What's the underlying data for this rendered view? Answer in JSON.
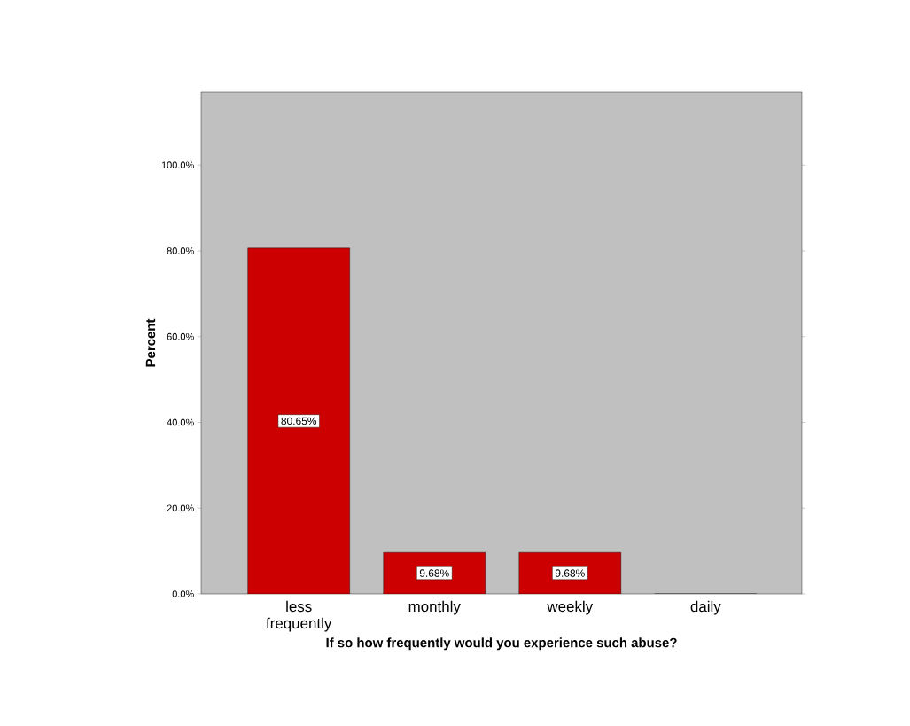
{
  "chart_data": {
    "type": "bar",
    "categories": [
      "less frequently",
      "monthly",
      "weekly",
      "daily"
    ],
    "values": [
      80.65,
      9.68,
      9.68,
      0
    ],
    "value_labels": [
      "80.65%",
      "9.68%",
      "9.68%",
      null
    ],
    "color": "#cc0000",
    "xlabel": "If so how frequently would you experience such abuse?",
    "ylabel": "Percent",
    "ylim": [
      0,
      117
    ],
    "yticks": [
      {
        "value": 0,
        "label": "0.0%"
      },
      {
        "value": 20,
        "label": "20.0%"
      },
      {
        "value": 40,
        "label": "40.0%"
      },
      {
        "value": 60,
        "label": "60.0%"
      },
      {
        "value": 80,
        "label": "80.0%"
      },
      {
        "value": 100,
        "label": "100.0%"
      }
    ],
    "grid": false
  }
}
